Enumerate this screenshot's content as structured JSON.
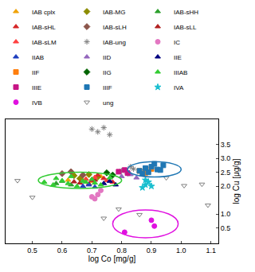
{
  "chart_data": {
    "type": "scatter",
    "x_label": "log Co [mg/g]",
    "y_label": "log Cu [μg/g]",
    "xlim": [
      0.41,
      1.125
    ],
    "ylim": [
      -0.05,
      4.4
    ],
    "xticks": [
      0.5,
      0.6,
      0.7,
      0.8,
      0.9,
      {
        "value": 1.0,
        "label": "1.0"
      },
      1.1
    ],
    "yticks": [
      0.5,
      {
        "value": 1.0,
        "label": "1.0"
      },
      {
        "value": 2.0,
        "label": "2.0"
      },
      2.5,
      {
        "value": 3.0,
        "label": "3.0"
      },
      3.5
    ],
    "grid": false,
    "legend": "top",
    "series": [
      {
        "name": "IAB cplx",
        "color": "#f0a30a",
        "marker": "triangle-up",
        "x": [
          0.62,
          0.66,
          0.7,
          0.73,
          0.68
        ],
        "y": [
          2.22,
          2.3,
          2.18,
          2.35,
          2.26
        ]
      },
      {
        "name": "IAB-MG",
        "color": "#8c8c00",
        "marker": "diamond",
        "x": [
          0.64,
          0.69,
          0.72,
          0.66
        ],
        "y": [
          2.38,
          2.42,
          2.33,
          2.28
        ]
      },
      {
        "name": "IAB-sHH",
        "color": "#2ca02c",
        "marker": "triangle-up",
        "x": [
          0.58,
          0.6,
          0.63
        ],
        "y": [
          2.1,
          2.18,
          2.05
        ]
      },
      {
        "name": "IAB-sHL",
        "color": "#d62728",
        "marker": "triangle-up",
        "x": [
          0.7,
          0.74,
          0.77,
          0.72
        ],
        "y": [
          2.2,
          2.28,
          2.15,
          2.4
        ]
      },
      {
        "name": "IAB-sLH",
        "color": "#8c564b",
        "marker": "diamond",
        "x": [
          0.6,
          0.63,
          0.67
        ],
        "y": [
          2.45,
          2.52,
          2.4
        ]
      },
      {
        "name": "IAB-sLL",
        "color": "#b22222",
        "marker": "triangle-up",
        "x": [
          0.66,
          0.69,
          0.71,
          0.64
        ],
        "y": [
          2.12,
          2.08,
          2.22,
          2.16
        ]
      },
      {
        "name": "IAB-sLM",
        "color": "#ff4040",
        "marker": "triangle-up",
        "x": [
          0.68,
          0.71,
          0.75
        ],
        "y": [
          2.25,
          2.32,
          2.2
        ]
      },
      {
        "name": "IAB-ung",
        "color": "#7f7f7f",
        "marker": "asterisk-open",
        "x": [
          0.7,
          0.72,
          0.74,
          0.76,
          0.8,
          0.82,
          0.84,
          0.83
        ],
        "y": [
          4.05,
          3.95,
          4.1,
          3.85,
          2.55,
          2.45,
          2.62,
          2.7
        ]
      },
      {
        "name": "IC",
        "color": "#e377c2",
        "marker": "circle",
        "x": [
          0.71,
          0.72,
          0.73,
          0.7
        ],
        "y": [
          1.55,
          1.7,
          1.85,
          1.62
        ]
      },
      {
        "name": "IIAB",
        "color": "#1f3fbf",
        "marker": "triangle-up",
        "x": [
          0.67,
          0.69,
          0.71
        ],
        "y": [
          2.0,
          2.05,
          1.97
        ]
      },
      {
        "name": "IID",
        "color": "#9467bd",
        "marker": "triangle-up",
        "x": [
          0.8,
          0.83,
          0.85
        ],
        "y": [
          2.35,
          2.42,
          2.3
        ]
      },
      {
        "name": "IIE",
        "color": "#000080",
        "marker": "triangle-up",
        "x": [
          0.74,
          0.76,
          0.78
        ],
        "y": [
          2.1,
          2.18,
          2.05
        ]
      },
      {
        "name": "IIF",
        "color": "#ff7f0e",
        "marker": "square",
        "x": [
          0.86,
          0.88,
          0.9
        ],
        "y": [
          2.55,
          2.48,
          2.62
        ]
      },
      {
        "name": "IIG",
        "color": "#006400",
        "marker": "diamond",
        "x": [
          0.75,
          0.77
        ],
        "y": [
          2.48,
          2.4
        ]
      },
      {
        "name": "IIIAB",
        "color": "#33cc33",
        "marker": "triangle-up",
        "x": [
          0.54,
          0.57,
          0.6,
          0.62,
          0.65,
          0.68,
          0.7,
          0.73,
          0.76,
          0.58,
          0.63,
          0.67,
          0.71
        ],
        "y": [
          2.15,
          2.05,
          2.2,
          2.1,
          2.0,
          2.15,
          2.25,
          2.05,
          2.3,
          2.28,
          2.35,
          2.18,
          2.12
        ],
        "ellipse": [
          0.52,
          0.8,
          1.92,
          2.5
        ]
      },
      {
        "name": "IIIE",
        "color": "#c71585",
        "marker": "square",
        "x": [
          0.79,
          0.81,
          0.82
        ],
        "y": [
          2.52,
          2.58,
          2.47
        ]
      },
      {
        "name": "IIIF",
        "color": "#1f77b4",
        "marker": "square",
        "x": [
          0.86,
          0.88,
          0.9,
          0.92,
          0.94,
          0.89,
          0.91,
          0.87,
          0.93
        ],
        "y": [
          2.55,
          2.65,
          2.7,
          2.6,
          2.75,
          2.5,
          2.8,
          2.45,
          2.58
        ],
        "ellipse": [
          0.82,
          1.0,
          2.33,
          2.88
        ]
      },
      {
        "name": "IVA",
        "color": "#17becf",
        "marker": "star",
        "x": [
          0.87,
          0.88,
          0.89,
          0.9,
          0.88
        ],
        "y": [
          1.95,
          2.05,
          2.15,
          2.0,
          2.22
        ]
      },
      {
        "name": "IVB",
        "color": "#e010e0",
        "marker": "circle",
        "x": [
          0.81,
          0.9,
          0.91
        ],
        "y": [
          0.35,
          0.78,
          0.57
        ],
        "ellipse": [
          0.77,
          0.99,
          0.15,
          1.15
        ]
      },
      {
        "name": "ung",
        "color": "#808080",
        "marker": "triangle-down-open",
        "x": [
          0.5,
          0.74,
          0.79,
          0.86,
          1.01,
          1.07,
          1.09,
          0.45,
          0.95
        ],
        "y": [
          1.6,
          0.85,
          1.18,
          0.98,
          2.02,
          2.07,
          1.32,
          2.2,
          2.3
        ]
      }
    ]
  }
}
